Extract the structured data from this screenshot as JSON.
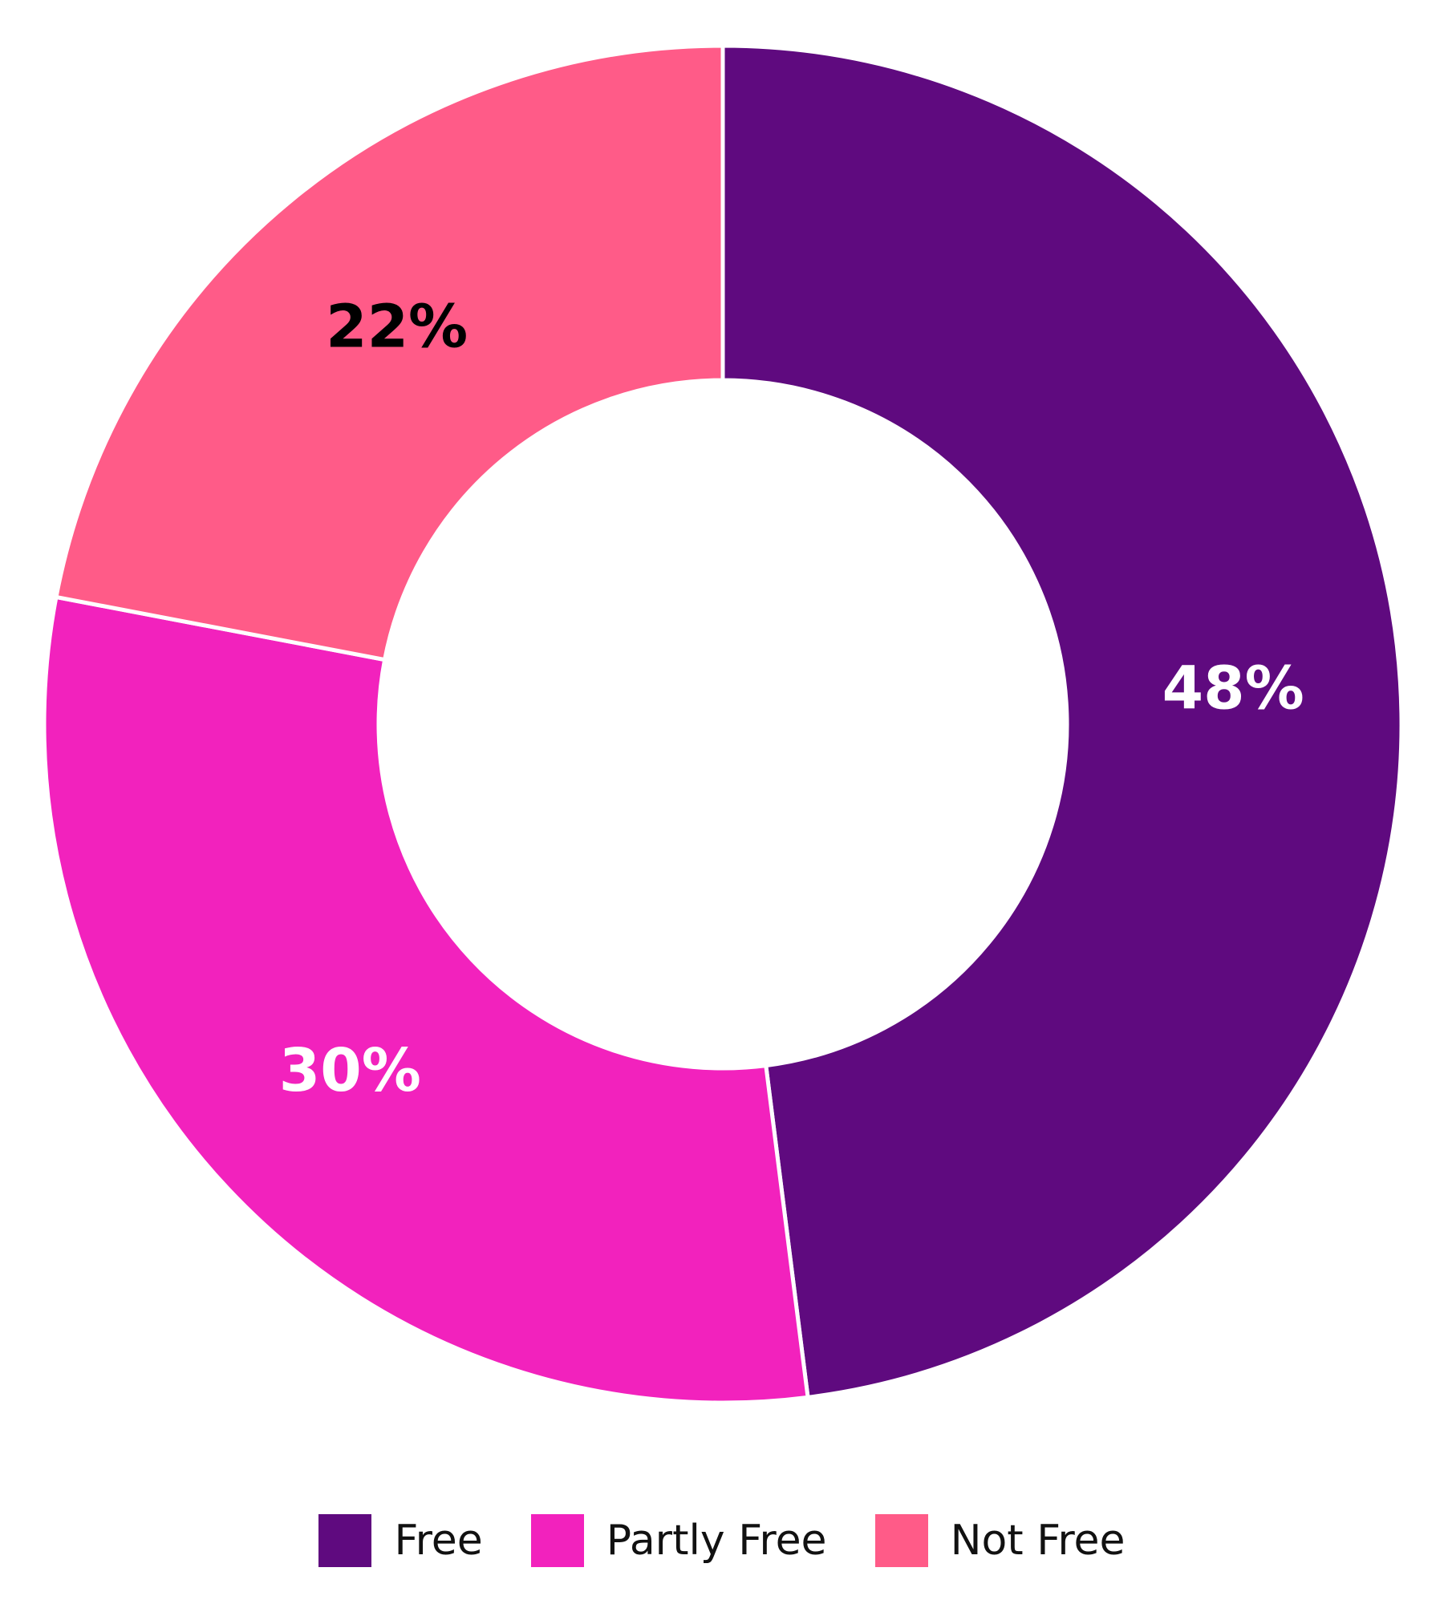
{
  "chart_data": {
    "type": "donut",
    "categories": [
      "Free",
      "Partly Free",
      "Not Free"
    ],
    "values": [
      48,
      30,
      22
    ],
    "value_labels": [
      "48%",
      "30%",
      "22%"
    ],
    "colors": [
      "#5f0a7f",
      "#f222bd",
      "#ff5b88"
    ],
    "value_label_colors": [
      "#ffffff",
      "#ffffff",
      "#000000"
    ],
    "legend": "bottom"
  }
}
